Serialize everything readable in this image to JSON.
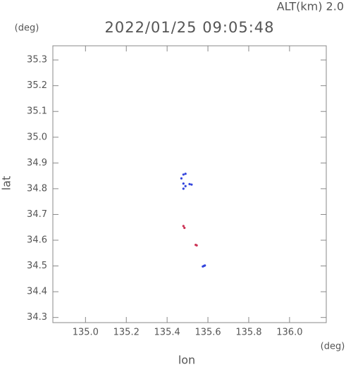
{
  "chart_data": {
    "type": "scatter",
    "title": "2022/01/25 09:05:48",
    "subtitle": "ALT(km) 2.0",
    "y_unit": "(deg)",
    "x_unit": "(deg)",
    "x_label": "lon",
    "y_label": "lat",
    "xlim": [
      134.84,
      136.18
    ],
    "ylim": [
      34.28,
      35.355
    ],
    "xticks": [
      {
        "value": 135.0,
        "label": "135.0"
      },
      135.2,
      135.4,
      135.6,
      135.8,
      {
        "value": 136.0,
        "label": "136.0"
      }
    ],
    "yticks": [
      34.3,
      34.4,
      {
        "value": 34.5,
        "label": "34.5"
      },
      34.6,
      34.7,
      34.8,
      34.9,
      {
        "value": 35.0,
        "label": "35.0"
      },
      35.1,
      35.2,
      35.3
    ],
    "series": [
      {
        "name": "blue",
        "color": "#3344dd",
        "x": [
          135.48,
          135.49,
          135.47,
          135.48,
          135.48,
          135.49,
          135.52,
          135.51,
          135.58,
          135.585,
          135.575
        ],
        "y": [
          34.855,
          34.858,
          34.84,
          34.82,
          34.8,
          34.81,
          34.816,
          34.818,
          34.5,
          34.502,
          34.498
        ]
      },
      {
        "name": "red",
        "color": "#cc3355",
        "x": [
          135.48,
          135.485,
          135.54,
          135.545
        ],
        "y": [
          34.655,
          34.648,
          34.582,
          34.58
        ]
      }
    ]
  }
}
